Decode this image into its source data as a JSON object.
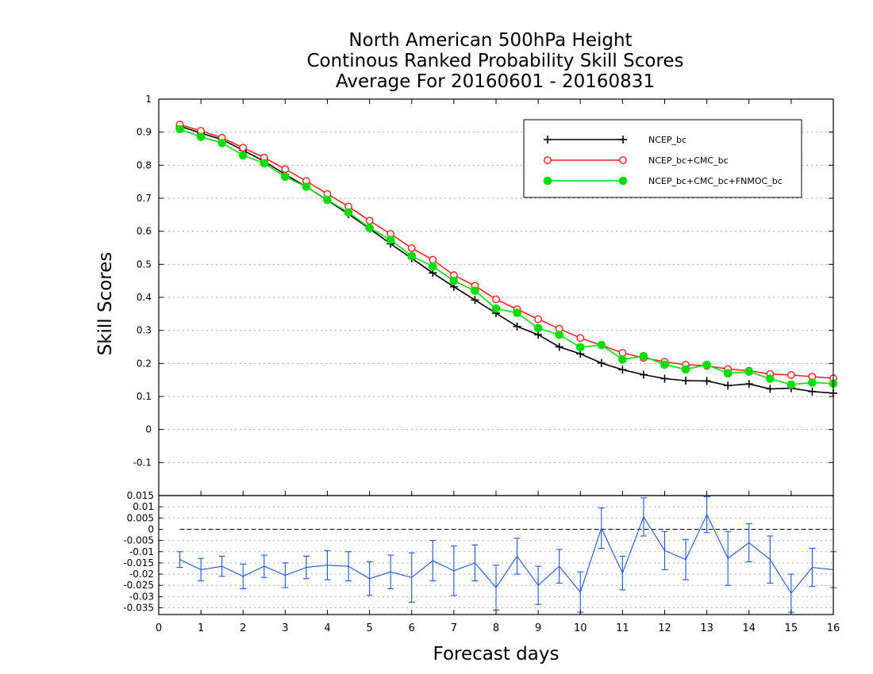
{
  "chart_data": {
    "type": "line",
    "title": [
      "North American 500hPa Height",
      "Continous Ranked Probability Skill Scores",
      "Average For 20160601 - 20160831"
    ],
    "xlabel": "Forecast days",
    "ylabel": "Skill Scores",
    "xlim": [
      0,
      16
    ],
    "ylim": [
      -0.2,
      1
    ],
    "x_ticks": [
      "0",
      "1",
      "2",
      "3",
      "4",
      "5",
      "6",
      "7",
      "8",
      "9",
      "10",
      "11",
      "12",
      "13",
      "14",
      "15",
      "16"
    ],
    "y_ticks": [
      "-0.1",
      "0",
      "0.1",
      "0.2",
      "0.3",
      "0.4",
      "0.5",
      "0.6",
      "0.7",
      "0.8",
      "0.9",
      "1"
    ],
    "grid": true,
    "legend_position": "top-right",
    "x": [
      0.5,
      1,
      1.5,
      2,
      2.5,
      3,
      3.5,
      4,
      4.5,
      5,
      5.5,
      6,
      6.5,
      7,
      7.5,
      8,
      8.5,
      9,
      9.5,
      10,
      10.5,
      11,
      11.5,
      12,
      12.5,
      13,
      13.5,
      14,
      14.5,
      15,
      15.5,
      16
    ],
    "series": [
      {
        "name": "NCEP_bc",
        "color": "#000000",
        "marker": "plus",
        "values": [
          0.918,
          0.897,
          0.878,
          0.845,
          0.812,
          0.772,
          0.735,
          0.694,
          0.652,
          0.608,
          0.562,
          0.518,
          0.474,
          0.432,
          0.392,
          0.352,
          0.312,
          0.287,
          0.25,
          0.229,
          0.201,
          0.181,
          0.166,
          0.154,
          0.148,
          0.147,
          0.133,
          0.138,
          0.123,
          0.125,
          0.115,
          0.11
        ]
      },
      {
        "name": "NCEP_bc+CMC_bc",
        "color": "#ff2020",
        "marker": "open-circle",
        "values": [
          0.923,
          0.904,
          0.883,
          0.853,
          0.823,
          0.788,
          0.752,
          0.713,
          0.675,
          0.632,
          0.592,
          0.549,
          0.514,
          0.467,
          0.435,
          0.394,
          0.364,
          0.334,
          0.305,
          0.277,
          0.255,
          0.232,
          0.217,
          0.205,
          0.196,
          0.193,
          0.183,
          0.178,
          0.168,
          0.165,
          0.16,
          0.155
        ]
      },
      {
        "name": "NCEP_bc+CMC_bc+FNMOC_bc",
        "color": "#00dd00",
        "marker": "filled-circle",
        "values": [
          0.909,
          0.886,
          0.867,
          0.83,
          0.806,
          0.765,
          0.735,
          0.695,
          0.657,
          0.61,
          0.574,
          0.525,
          0.494,
          0.45,
          0.42,
          0.366,
          0.353,
          0.307,
          0.287,
          0.249,
          0.256,
          0.212,
          0.222,
          0.196,
          0.182,
          0.196,
          0.17,
          0.175,
          0.154,
          0.136,
          0.142,
          0.139
        ]
      }
    ],
    "difference_panel": {
      "ylim": [
        -0.038,
        0.015
      ],
      "y_ticks": [
        "-0.035",
        "-0.03",
        "-0.025",
        "-0.02",
        "-0.015",
        "-0.01",
        "-0.005",
        "0",
        "0.005",
        "0.01",
        "0.015"
      ],
      "color": "#2255dd",
      "values": [
        -0.0135,
        -0.018,
        -0.0165,
        -0.021,
        -0.0165,
        -0.0205,
        -0.017,
        -0.016,
        -0.0165,
        -0.022,
        -0.019,
        -0.0215,
        -0.014,
        -0.0185,
        -0.015,
        -0.026,
        -0.012,
        -0.025,
        -0.0165,
        -0.028,
        0.0005,
        -0.0195,
        0.0055,
        -0.0095,
        -0.0135,
        0.0065,
        -0.013,
        -0.006,
        -0.0135,
        -0.0285,
        -0.017,
        -0.018
      ],
      "error": [
        0.0035,
        0.005,
        0.0045,
        0.0055,
        0.005,
        0.0055,
        0.005,
        0.0065,
        0.0065,
        0.0075,
        0.0075,
        0.011,
        0.009,
        0.011,
        0.008,
        0.01,
        0.008,
        0.0085,
        0.0075,
        0.009,
        0.009,
        0.0075,
        0.0085,
        0.0085,
        0.009,
        0.008,
        0.012,
        0.0085,
        0.0105,
        0.0085,
        0.0085,
        0.008
      ]
    }
  }
}
